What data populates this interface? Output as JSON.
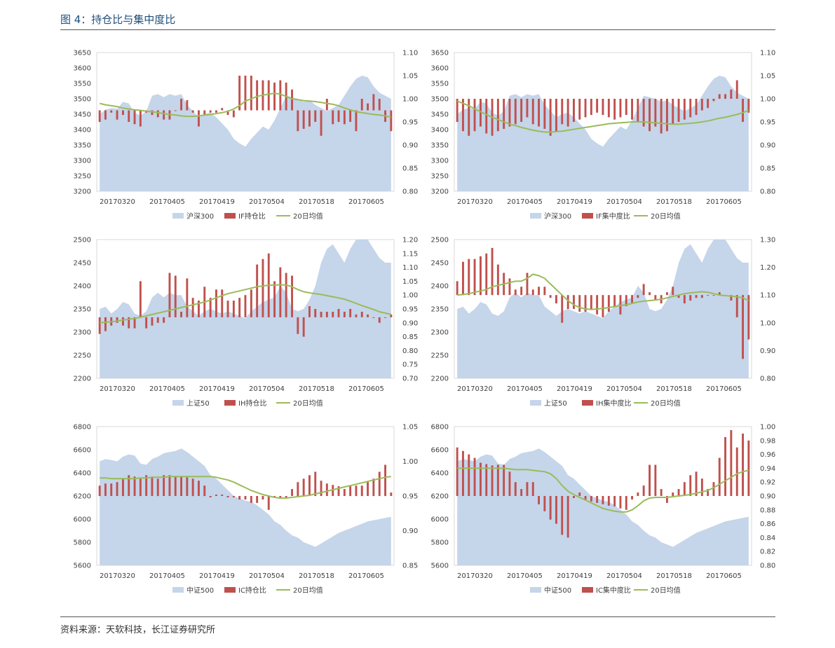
{
  "header": {
    "title": "图 4：持仓比与集中度比"
  },
  "footer": {
    "source": "资料来源：天软科技，长江证券研究所"
  },
  "colors": {
    "area": "#c5d5ea",
    "bar": "#c0504d",
    "line": "#9bbb59",
    "title": "#1f4e79"
  },
  "chart_data": [
    {
      "type": "bar",
      "xlabels": [
        "20170320",
        "20170405",
        "20170419",
        "20170504",
        "20170518",
        "20170605"
      ],
      "left_axis": {
        "ticks": [
          "3200",
          "3250",
          "3300",
          "3350",
          "3400",
          "3450",
          "3500",
          "3550",
          "3600",
          "3650"
        ],
        "range": [
          3200,
          3650
        ]
      },
      "right_axis": {
        "ticks": [
          "0.80",
          "0.85",
          "0.90",
          "0.95",
          "1.00",
          "1.05",
          "1.10"
        ],
        "range": [
          0.8,
          1.1
        ],
        "bar_base": 0.975
      },
      "legend": [
        "沪深300",
        "IF持仓比",
        "20日均值"
      ],
      "area_series": [
        3450,
        3465,
        3470,
        3468,
        3490,
        3485,
        3455,
        3445,
        3460,
        3510,
        3515,
        3505,
        3515,
        3510,
        3515,
        3480,
        3460,
        3440,
        3450,
        3455,
        3440,
        3420,
        3400,
        3370,
        3355,
        3345,
        3370,
        3390,
        3410,
        3400,
        3430,
        3470,
        3510,
        3505,
        3500,
        3490,
        3495,
        3480,
        3470,
        3460,
        3470,
        3480,
        3510,
        3540,
        3565,
        3575,
        3570,
        3540,
        3520,
        3510,
        3500
      ],
      "bar_series": [
        0.95,
        0.955,
        0.97,
        0.955,
        0.965,
        0.95,
        0.945,
        0.94,
        0.97,
        0.965,
        0.96,
        0.955,
        0.955,
        0.975,
        1.0,
        0.997,
        0.97,
        0.94,
        0.965,
        0.97,
        0.97,
        0.98,
        0.965,
        0.96,
        1.05,
        1.05,
        1.05,
        1.04,
        1.04,
        1.04,
        1.035,
        1.04,
        1.035,
        1.02,
        0.93,
        0.935,
        0.94,
        0.95,
        0.92,
        1.0,
        0.945,
        0.95,
        0.945,
        0.95,
        0.93,
        1.0,
        0.99,
        1.01,
        1.0,
        0.95,
        0.93
      ],
      "line_series": [
        0.99,
        0.987,
        0.985,
        0.983,
        0.98,
        0.978,
        0.976,
        0.975,
        0.973,
        0.972,
        0.97,
        0.968,
        0.966,
        0.965,
        0.963,
        0.962,
        0.962,
        0.963,
        0.965,
        0.966,
        0.968,
        0.97,
        0.973,
        0.978,
        0.985,
        0.995,
        1.0,
        1.005,
        1.008,
        1.01,
        1.012,
        1.01,
        1.005,
        1.0,
        0.998,
        0.996,
        0.995,
        0.994,
        0.992,
        0.99,
        0.988,
        0.985,
        0.98,
        0.976,
        0.972,
        0.97,
        0.968,
        0.966,
        0.965,
        0.963,
        0.96
      ]
    },
    {
      "type": "bar",
      "xlabels": [
        "20170320",
        "20170405",
        "20170419",
        "20170504",
        "20170518",
        "20170605"
      ],
      "left_axis": {
        "ticks": [
          "3200",
          "3250",
          "3300",
          "3350",
          "3400",
          "3450",
          "3500",
          "3550",
          "3600",
          "3650"
        ],
        "range": [
          3200,
          3650
        ]
      },
      "right_axis": {
        "ticks": [
          "0.80",
          "0.85",
          "0.90",
          "0.95",
          "1.00",
          "1.05",
          "1.10"
        ],
        "range": [
          0.8,
          1.1
        ],
        "bar_base": 1.0
      },
      "legend": [
        "沪深300",
        "IF集中度比",
        "20日均值"
      ],
      "area_series": [
        3450,
        3465,
        3470,
        3468,
        3490,
        3485,
        3455,
        3445,
        3460,
        3510,
        3515,
        3505,
        3515,
        3510,
        3515,
        3480,
        3460,
        3440,
        3450,
        3455,
        3440,
        3420,
        3400,
        3370,
        3355,
        3345,
        3370,
        3390,
        3410,
        3400,
        3430,
        3470,
        3510,
        3505,
        3500,
        3490,
        3495,
        3480,
        3470,
        3460,
        3470,
        3480,
        3510,
        3540,
        3565,
        3575,
        3570,
        3540,
        3520,
        3510,
        3500
      ],
      "bar_series": [
        0.95,
        0.93,
        0.92,
        0.93,
        0.94,
        0.925,
        0.92,
        0.93,
        0.935,
        0.94,
        0.945,
        0.95,
        0.96,
        0.945,
        0.94,
        0.935,
        0.92,
        0.93,
        0.945,
        0.94,
        0.95,
        0.955,
        0.96,
        0.965,
        0.97,
        0.965,
        0.96,
        0.955,
        0.96,
        0.965,
        0.955,
        0.95,
        0.94,
        0.93,
        0.94,
        0.925,
        0.93,
        0.945,
        0.95,
        0.955,
        0.96,
        0.965,
        0.975,
        0.98,
        0.995,
        1.01,
        1.01,
        1.02,
        1.04,
        0.95,
        0.97
      ],
      "line_series": [
        0.995,
        0.99,
        0.985,
        0.978,
        0.972,
        0.966,
        0.96,
        0.955,
        0.95,
        0.945,
        0.942,
        0.938,
        0.935,
        0.932,
        0.93,
        0.928,
        0.928,
        0.929,
        0.93,
        0.932,
        0.934,
        0.936,
        0.938,
        0.94,
        0.942,
        0.944,
        0.946,
        0.947,
        0.948,
        0.949,
        0.95,
        0.95,
        0.95,
        0.949,
        0.948,
        0.947,
        0.946,
        0.945,
        0.945,
        0.946,
        0.947,
        0.948,
        0.95,
        0.952,
        0.955,
        0.958,
        0.96,
        0.963,
        0.966,
        0.97,
        0.975
      ]
    },
    {
      "type": "bar",
      "xlabels": [
        "20170320",
        "20170405",
        "20170419",
        "20170504",
        "20170518",
        "20170605"
      ],
      "left_axis": {
        "ticks": [
          "2200",
          "2250",
          "2300",
          "2350",
          "2400",
          "2450",
          "2500"
        ],
        "range": [
          2200,
          2500
        ]
      },
      "right_axis": {
        "ticks": [
          "0.70",
          "0.75",
          "0.80",
          "0.85",
          "0.90",
          "0.95",
          "1.00",
          "1.05",
          "1.10",
          "1.15",
          "1.20"
        ],
        "range": [
          0.7,
          1.2
        ],
        "bar_base": 0.92
      },
      "legend": [
        "上证50",
        "IH持仓比",
        "20日均值"
      ],
      "area_series": [
        2350,
        2355,
        2340,
        2350,
        2365,
        2360,
        2340,
        2335,
        2345,
        2375,
        2385,
        2375,
        2385,
        2380,
        2380,
        2355,
        2345,
        2335,
        2345,
        2350,
        2345,
        2340,
        2345,
        2340,
        2335,
        2330,
        2345,
        2355,
        2365,
        2370,
        2375,
        2400,
        2385,
        2350,
        2345,
        2350,
        2370,
        2400,
        2450,
        2480,
        2490,
        2470,
        2450,
        2480,
        2500,
        2505,
        2510,
        2480,
        2460,
        2450,
        2450
      ],
      "bar_series": [
        0.86,
        0.87,
        0.89,
        0.9,
        0.89,
        0.88,
        0.88,
        1.05,
        0.88,
        0.89,
        0.9,
        0.9,
        1.08,
        1.07,
        0.94,
        1.06,
        0.99,
        0.98,
        1.03,
        0.99,
        1.02,
        1.02,
        0.98,
        0.98,
        0.99,
        1.0,
        1.02,
        1.11,
        1.13,
        1.15,
        1.05,
        1.1,
        1.08,
        1.07,
        0.86,
        0.85,
        0.96,
        0.95,
        0.94,
        0.94,
        0.94,
        0.95,
        0.94,
        0.95,
        0.93,
        0.94,
        0.93,
        0.92,
        0.9,
        0.92,
        0.93
      ],
      "line_series": [
        0.9,
        0.902,
        0.904,
        0.906,
        0.91,
        0.913,
        0.916,
        0.92,
        0.925,
        0.93,
        0.935,
        0.94,
        0.945,
        0.95,
        0.955,
        0.96,
        0.965,
        0.97,
        0.975,
        0.982,
        0.99,
        0.998,
        1.005,
        1.01,
        1.015,
        1.02,
        1.025,
        1.03,
        1.033,
        1.035,
        1.036,
        1.037,
        1.036,
        1.03,
        1.02,
        1.012,
        1.008,
        1.005,
        1.002,
        0.998,
        0.994,
        0.99,
        0.985,
        0.978,
        0.97,
        0.962,
        0.955,
        0.948,
        0.94,
        0.935,
        0.93
      ]
    },
    {
      "type": "bar",
      "xlabels": [
        "20170320",
        "20170405",
        "20170419",
        "20170504",
        "20170518",
        "20170605"
      ],
      "left_axis": {
        "ticks": [
          "2200",
          "2250",
          "2300",
          "2350",
          "2400",
          "2450",
          "2500"
        ],
        "range": [
          2200,
          2500
        ]
      },
      "right_axis": {
        "ticks": [
          "0.80",
          "0.90",
          "1.00",
          "1.10",
          "1.20",
          "1.30"
        ],
        "range": [
          0.8,
          1.3
        ],
        "bar_base": 1.1
      },
      "legend": [
        "上证50",
        "IH集中度比",
        "20日均值"
      ],
      "area_series": [
        2350,
        2355,
        2340,
        2350,
        2365,
        2360,
        2340,
        2335,
        2345,
        2375,
        2385,
        2375,
        2385,
        2380,
        2380,
        2355,
        2345,
        2335,
        2345,
        2350,
        2345,
        2340,
        2345,
        2340,
        2335,
        2330,
        2345,
        2355,
        2365,
        2370,
        2375,
        2400,
        2385,
        2350,
        2345,
        2350,
        2370,
        2400,
        2450,
        2480,
        2490,
        2470,
        2450,
        2480,
        2500,
        2505,
        2510,
        2480,
        2460,
        2450,
        2450
      ],
      "bar_series": [
        1.15,
        1.22,
        1.23,
        1.23,
        1.24,
        1.25,
        1.27,
        1.21,
        1.18,
        1.16,
        1.12,
        1.13,
        1.18,
        1.12,
        1.13,
        1.13,
        1.09,
        1.07,
        1.0,
        1.05,
        1.05,
        1.04,
        1.04,
        1.05,
        1.03,
        1.02,
        1.04,
        1.06,
        1.03,
        1.06,
        1.07,
        1.09,
        1.14,
        1.11,
        1.08,
        1.07,
        1.11,
        1.13,
        1.09,
        1.07,
        1.08,
        1.09,
        1.09,
        1.1,
        1.1,
        1.11,
        1.1,
        1.08,
        1.02,
        0.87,
        0.94
      ],
      "line_series": [
        1.1,
        1.102,
        1.105,
        1.11,
        1.115,
        1.12,
        1.13,
        1.135,
        1.14,
        1.145,
        1.15,
        1.15,
        1.16,
        1.175,
        1.17,
        1.16,
        1.14,
        1.12,
        1.1,
        1.08,
        1.065,
        1.055,
        1.05,
        1.048,
        1.05,
        1.052,
        1.055,
        1.058,
        1.062,
        1.065,
        1.07,
        1.075,
        1.078,
        1.08,
        1.082,
        1.085,
        1.09,
        1.095,
        1.1,
        1.105,
        1.108,
        1.11,
        1.112,
        1.11,
        1.105,
        1.1,
        1.098,
        1.096,
        1.094,
        1.09,
        1.08
      ]
    },
    {
      "type": "bar",
      "xlabels": [
        "20170320",
        "20170405",
        "20170419",
        "20170504",
        "20170518",
        "20170605"
      ],
      "left_axis": {
        "ticks": [
          "5600",
          "5800",
          "6000",
          "6200",
          "6400",
          "6600",
          "6800"
        ],
        "range": [
          5600,
          6800
        ]
      },
      "right_axis": {
        "ticks": [
          "0.85",
          "0.90",
          "0.95",
          "1.00",
          "1.05"
        ],
        "range": [
          0.85,
          1.05
        ],
        "bar_base": 0.95
      },
      "legend": [
        "中证500",
        "IC持仓比",
        "20日均值"
      ],
      "area_series": [
        6500,
        6520,
        6510,
        6500,
        6540,
        6560,
        6550,
        6480,
        6470,
        6520,
        6540,
        6570,
        6580,
        6590,
        6610,
        6580,
        6540,
        6500,
        6460,
        6380,
        6350,
        6300,
        6250,
        6200,
        6180,
        6160,
        6150,
        6120,
        6080,
        6040,
        5980,
        5950,
        5900,
        5860,
        5840,
        5800,
        5780,
        5760,
        5790,
        5820,
        5850,
        5880,
        5900,
        5920,
        5940,
        5960,
        5980,
        5990,
        6000,
        6010,
        6020
      ],
      "bar_series": [
        0.965,
        0.968,
        0.968,
        0.97,
        0.975,
        0.98,
        0.978,
        0.975,
        0.98,
        0.978,
        0.975,
        0.98,
        0.98,
        0.978,
        0.978,
        0.977,
        0.975,
        0.972,
        0.965,
        0.948,
        0.952,
        0.952,
        0.948,
        0.948,
        0.945,
        0.945,
        0.94,
        0.94,
        0.945,
        0.93,
        0.948,
        0.946,
        0.948,
        0.96,
        0.97,
        0.975,
        0.98,
        0.985,
        0.972,
        0.968,
        0.966,
        0.964,
        0.96,
        0.965,
        0.965,
        0.965,
        0.97,
        0.975,
        0.985,
        0.995,
        0.955
      ],
      "line_series": [
        0.976,
        0.976,
        0.975,
        0.975,
        0.975,
        0.975,
        0.975,
        0.976,
        0.976,
        0.977,
        0.977,
        0.977,
        0.978,
        0.978,
        0.978,
        0.978,
        0.978,
        0.978,
        0.978,
        0.978,
        0.977,
        0.975,
        0.973,
        0.97,
        0.966,
        0.962,
        0.958,
        0.955,
        0.952,
        0.95,
        0.948,
        0.947,
        0.947,
        0.948,
        0.949,
        0.95,
        0.951,
        0.953,
        0.955,
        0.957,
        0.959,
        0.961,
        0.963,
        0.965,
        0.967,
        0.969,
        0.971,
        0.973,
        0.975,
        0.977,
        0.978
      ]
    },
    {
      "type": "bar",
      "xlabels": [
        "20170320",
        "20170405",
        "20170419",
        "20170504",
        "20170518",
        "20170605"
      ],
      "left_axis": {
        "ticks": [
          "5600",
          "5800",
          "6000",
          "6200",
          "6400",
          "6600",
          "6800"
        ],
        "range": [
          5600,
          6800
        ]
      },
      "right_axis": {
        "ticks": [
          "0.80",
          "0.82",
          "0.84",
          "0.86",
          "0.88",
          "0.90",
          "0.92",
          "0.94",
          "0.96",
          "0.98",
          "1.00"
        ],
        "range": [
          0.8,
          1.0
        ],
        "bar_base": 0.9
      },
      "legend": [
        "中证500",
        "IC集中度比",
        "20日均值"
      ],
      "area_series": [
        6500,
        6520,
        6510,
        6500,
        6540,
        6560,
        6550,
        6480,
        6470,
        6520,
        6540,
        6570,
        6580,
        6590,
        6610,
        6580,
        6540,
        6500,
        6460,
        6380,
        6350,
        6300,
        6250,
        6200,
        6180,
        6160,
        6150,
        6120,
        6080,
        6040,
        5980,
        5950,
        5900,
        5860,
        5840,
        5800,
        5780,
        5760,
        5790,
        5820,
        5850,
        5880,
        5900,
        5920,
        5940,
        5960,
        5980,
        5990,
        6000,
        6010,
        6020
      ],
      "bar_series": [
        0.97,
        0.965,
        0.96,
        0.955,
        0.948,
        0.946,
        0.944,
        0.945,
        0.945,
        0.935,
        0.92,
        0.91,
        0.92,
        0.92,
        0.888,
        0.878,
        0.866,
        0.86,
        0.844,
        0.84,
        0.897,
        0.905,
        0.894,
        0.892,
        0.89,
        0.888,
        0.886,
        0.885,
        0.882,
        0.88,
        0.895,
        0.905,
        0.915,
        0.945,
        0.945,
        0.91,
        0.89,
        0.905,
        0.91,
        0.92,
        0.93,
        0.935,
        0.925,
        0.91,
        0.92,
        0.955,
        0.985,
        0.995,
        0.97,
        0.99,
        0.98
      ],
      "line_series": [
        0.94,
        0.94,
        0.94,
        0.94,
        0.94,
        0.94,
        0.94,
        0.94,
        0.94,
        0.939,
        0.938,
        0.938,
        0.938,
        0.937,
        0.936,
        0.935,
        0.932,
        0.925,
        0.915,
        0.907,
        0.902,
        0.898,
        0.894,
        0.89,
        0.886,
        0.882,
        0.88,
        0.878,
        0.877,
        0.877,
        0.88,
        0.886,
        0.893,
        0.897,
        0.898,
        0.898,
        0.898,
        0.899,
        0.9,
        0.901,
        0.902,
        0.904,
        0.906,
        0.908,
        0.912,
        0.917,
        0.922,
        0.927,
        0.932,
        0.935,
        0.937
      ]
    }
  ]
}
